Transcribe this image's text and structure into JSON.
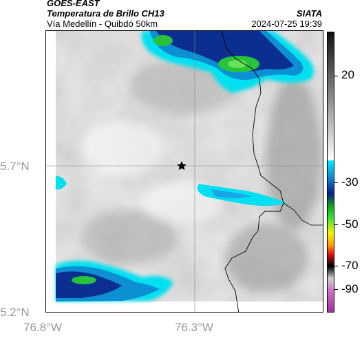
{
  "header": {
    "satellite": "GOES-EAST",
    "product": "Temperatura de Brillo CH13",
    "route": "Vía Medellín - Quibdó 50km",
    "source": "SIATA",
    "timestamp": "2024-07-25 19:39"
  },
  "axes": {
    "lat_labels": [
      "5.7°N",
      "5.2°N"
    ],
    "lon_labels": [
      "76.8°W",
      "76.3°W"
    ]
  },
  "colorbar": {
    "labels": [
      "20",
      "-30",
      "-50",
      "-70",
      "-90"
    ]
  },
  "map": {
    "marker_icon": "star-icon",
    "colors": {
      "cloud_cold": "#0a2a8a",
      "cloud_mid": "#1a9be0",
      "cloud_edge": "#00e5ff",
      "cloud_core": "#2ecc2e",
      "border": "#000000"
    }
  }
}
